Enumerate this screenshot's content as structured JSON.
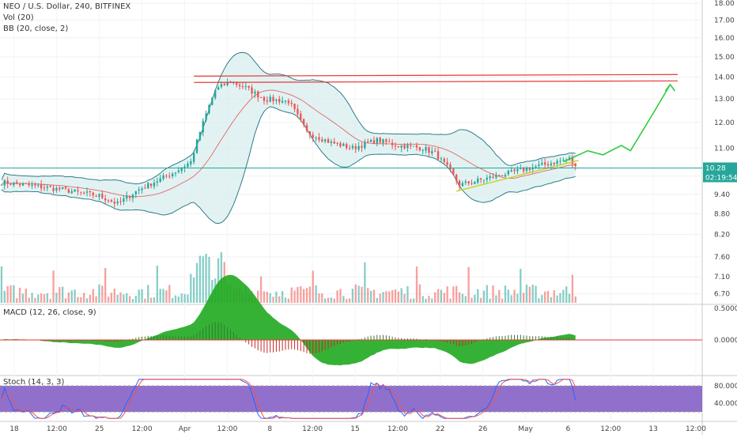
{
  "chart_data": {
    "type": "candlestick",
    "legend": {
      "main_title": "NEO / U.S. Dollar, 240, BITFINEX",
      "volume_label": "Vol (20)",
      "bb_label": "BB (20, close, 2)",
      "macd_label": "MACD (12, 26, close, 9)",
      "stoch_label": "Stoch (14, 3, 3)"
    },
    "price_axis": {
      "scale": "log",
      "ticks": [
        "18.00",
        "17.00",
        "16.00",
        "15.00",
        "14.00",
        "13.00",
        "12.00",
        "11.00",
        "10.00",
        "9.40",
        "8.80",
        "8.20",
        "7.60",
        "7.10",
        "6.70"
      ],
      "range": [
        6.5,
        18.2
      ]
    },
    "macd_axis": {
      "ticks": [
        "0.5000",
        "0.0000"
      ],
      "range": [
        -0.55,
        0.55
      ]
    },
    "stoch_axis": {
      "ticks": [
        "80.0000",
        "40.0000"
      ],
      "range": [
        0,
        100
      ],
      "bands": [
        20,
        80
      ]
    },
    "x_axis": {
      "ticks": [
        "18",
        "12:00",
        "25",
        "12:00",
        "Apr",
        "12:00",
        "8",
        "12:00",
        "15",
        "12:00",
        "22",
        "26",
        "May",
        "6",
        "12:00",
        "13",
        "12:00"
      ],
      "range_bars": [
        0,
        230
      ]
    },
    "current_price": {
      "value": "10.28",
      "countdown": "02:19:54",
      "color": "#26a69a"
    },
    "horizontal_lines": [
      {
        "name": "resistance-upper",
        "value": 14.05,
        "color": "#e53935"
      },
      {
        "name": "resistance-lower",
        "value": 13.75,
        "color": "#e53935"
      }
    ],
    "trendline": {
      "color": "#c6d630",
      "from": [
        149,
        9.5
      ],
      "to": [
        189,
        10.55
      ]
    },
    "projection_arrow": {
      "color": "#2ecc40",
      "path": [
        [
          184,
          10.5
        ],
        [
          192,
          10.9
        ],
        [
          197,
          10.75
        ],
        [
          203,
          11.1
        ],
        [
          206,
          10.9
        ],
        [
          214,
          12.5
        ],
        [
          219,
          13.65
        ]
      ]
    },
    "price_anchors": [
      [
        0,
        9.8
      ],
      [
        20,
        9.55
      ],
      [
        32,
        9.35
      ],
      [
        38,
        9.1
      ],
      [
        45,
        9.55
      ],
      [
        50,
        9.8
      ],
      [
        57,
        10.15
      ],
      [
        62,
        10.5
      ],
      [
        66,
        12.0
      ],
      [
        70,
        13.4
      ],
      [
        75,
        13.8
      ],
      [
        80,
        13.5
      ],
      [
        86,
        13.0
      ],
      [
        94,
        12.9
      ],
      [
        100,
        11.6
      ],
      [
        108,
        11.2
      ],
      [
        115,
        11.0
      ],
      [
        123,
        11.3
      ],
      [
        130,
        11.1
      ],
      [
        138,
        11.0
      ],
      [
        142,
        10.8
      ],
      [
        146,
        10.3
      ],
      [
        150,
        9.7
      ],
      [
        156,
        9.85
      ],
      [
        162,
        10.0
      ],
      [
        170,
        10.2
      ],
      [
        178,
        10.4
      ],
      [
        186,
        10.6
      ],
      [
        188,
        10.3
      ]
    ],
    "colors": {
      "up": "#26a69a",
      "down": "#ef5350",
      "bb_fill": "#d5ecee",
      "bb_line": "#2e7d86",
      "stoch_bg": "#7e57c2",
      "macd_hist": "#1faa1f",
      "macd_line": "#e53935"
    }
  }
}
